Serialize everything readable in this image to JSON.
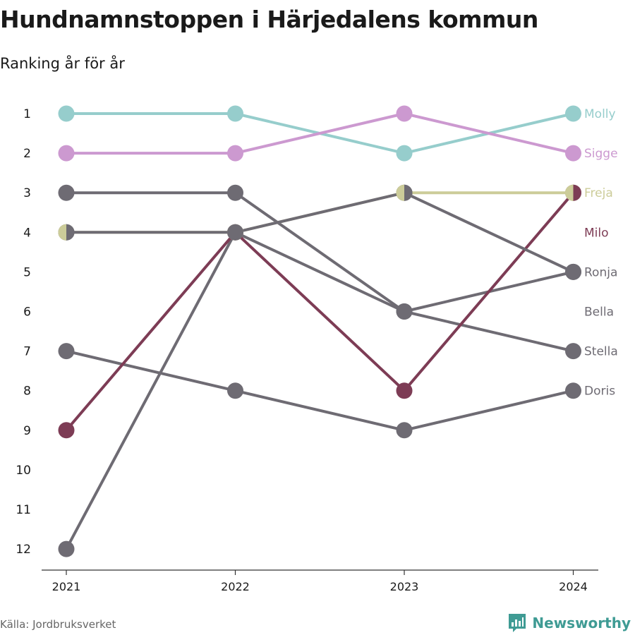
{
  "header": {
    "title": "Hundnamnstoppen i Härjedalens kommun",
    "subtitle": "Ranking år för år"
  },
  "footer": {
    "source": "Källa: Jordbruksverket",
    "brand": "Newsworthy",
    "brand_color": "#3f9b94",
    "brand_icon": "bar-chart-icon"
  },
  "chart_data": {
    "type": "line",
    "x": [
      "2021",
      "2022",
      "2023",
      "2024"
    ],
    "y_ticks": [
      1,
      2,
      3,
      4,
      5,
      6,
      7,
      8,
      9,
      10,
      11,
      12
    ],
    "ylim": [
      1,
      12
    ],
    "y_inverted": true,
    "grid": false,
    "series": [
      {
        "name": "Doris",
        "values": [
          7,
          8,
          9,
          8
        ],
        "color": "#6e6b73",
        "label_color": "#6e6b73"
      },
      {
        "name": "Stella",
        "values": [
          12,
          4,
          6,
          7
        ],
        "color": "#6e6b73",
        "label_color": "#6e6b73"
      },
      {
        "name": "Bella",
        "values": [
          null,
          null,
          null,
          null
        ],
        "color": "#6e6b73",
        "label_color": "#6e6b73"
      },
      {
        "name": "Ronja",
        "values": [
          3,
          3,
          6,
          5
        ],
        "color": "#6e6b73",
        "label_color": "#6e6b73"
      },
      {
        "name": "Molly",
        "values": [
          1,
          1,
          2,
          1
        ],
        "color": "#96cdcc",
        "label_color": "#96cdcc"
      },
      {
        "name": "Sigge",
        "values": [
          2,
          2,
          1,
          2
        ],
        "color": "#cc99d0",
        "label_color": "#cc99d0"
      },
      {
        "name": "Milo",
        "values": [
          9,
          4,
          8,
          3
        ],
        "color": "#7d3c55",
        "label_color": "#7d3c55"
      },
      {
        "name": "Freja",
        "values": [
          4,
          4,
          3,
          3
        ],
        "color": "#cccc99",
        "label_color": "#cccc99"
      },
      {
        "name": "",
        "values": [
          4,
          4,
          3,
          5
        ],
        "color": "#6e6b73",
        "label_color": "#6e6b73"
      }
    ],
    "label_values": {
      "Molly": 1,
      "Sigge": 2,
      "Freja": 3,
      "Milo": 4,
      "Ronja": 5,
      "Bella": 6,
      "Stella": 7,
      "Doris": 8
    }
  }
}
